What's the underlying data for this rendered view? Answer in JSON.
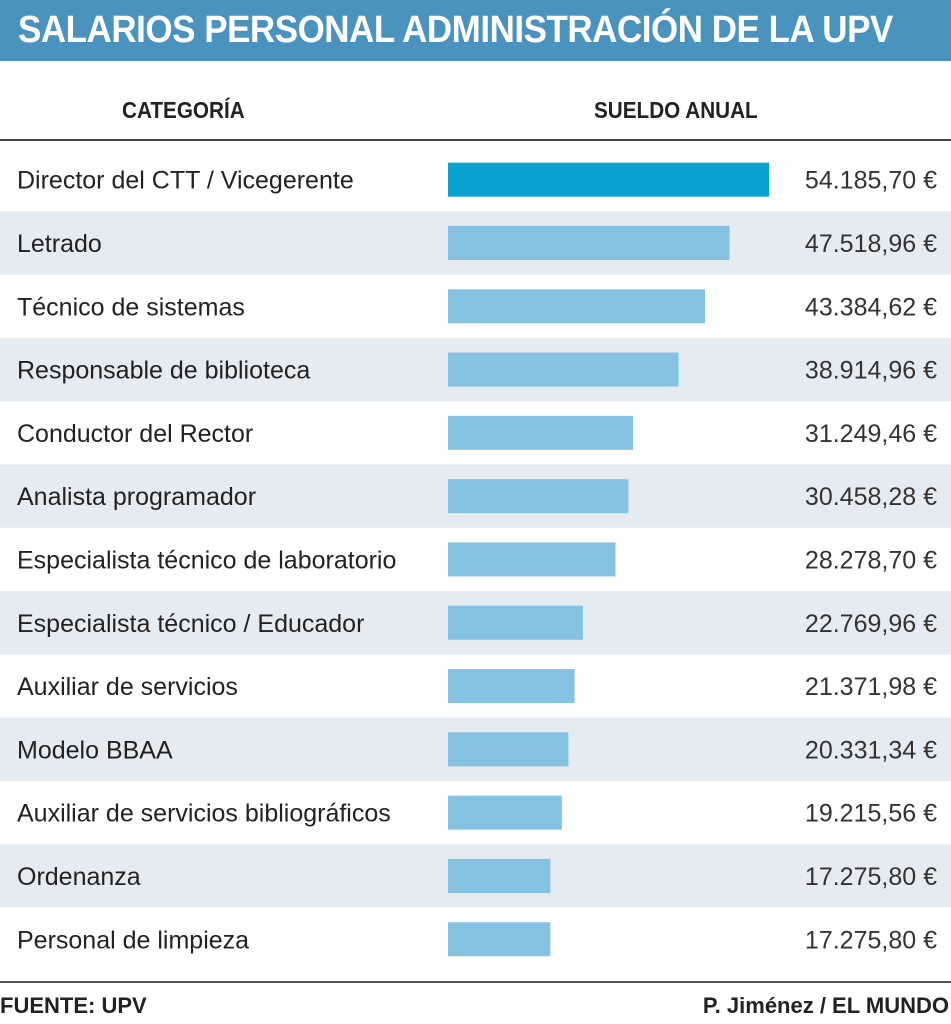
{
  "title": "SALARIOS PERSONAL ADMINISTRACIÓN DE LA UPV",
  "colors": {
    "title_bg": "#4a93bf",
    "highlight_bar": "#07a2cf",
    "bar": "#85c1e1",
    "stripe": "#e4ecf2"
  },
  "chart_data": {
    "type": "bar",
    "orientation": "horizontal",
    "title": "SALARIOS PERSONAL ADMINISTRACIÓN DE LA UPV",
    "xlabel": "SUELDO ANUAL",
    "ylabel": "CATEGORÍA",
    "unit": "€",
    "xlim": [
      0,
      54185.7
    ],
    "highlight_index": 0,
    "categories": [
      "Director del CTT / Vicegerente",
      "Letrado",
      "Técnico de sistemas",
      "Responsable de biblioteca",
      "Conductor del Rector",
      "Analista programador",
      "Especialista técnico de laboratorio",
      "Especialista técnico / Educador",
      "Auxiliar de servicios",
      "Modelo BBAA",
      "Auxiliar de servicios bibliográficos",
      "Ordenanza",
      "Personal de limpieza"
    ],
    "values": [
      54185.7,
      47518.96,
      43384.62,
      38914.96,
      31249.46,
      30458.28,
      28278.7,
      22769.96,
      21371.98,
      20331.34,
      19215.56,
      17275.8,
      17275.8
    ],
    "value_labels": [
      "54.185,70 €",
      "47.518,96 €",
      "43.384,62 €",
      "38.914,96 €",
      "31.249,46 €",
      "30.458,28 €",
      "28.278,70 €",
      "22.769,96 €",
      "21.371,98 €",
      "20.331,34 €",
      "19.215,56 €",
      "17.275,80 €",
      "17.275,80 €"
    ]
  },
  "headers": {
    "category": "CATEGORÍA",
    "salary": "SUELDO ANUAL"
  },
  "footer": {
    "source": "FUENTE: UPV",
    "credit": "P. Jiménez / EL MUNDO"
  }
}
